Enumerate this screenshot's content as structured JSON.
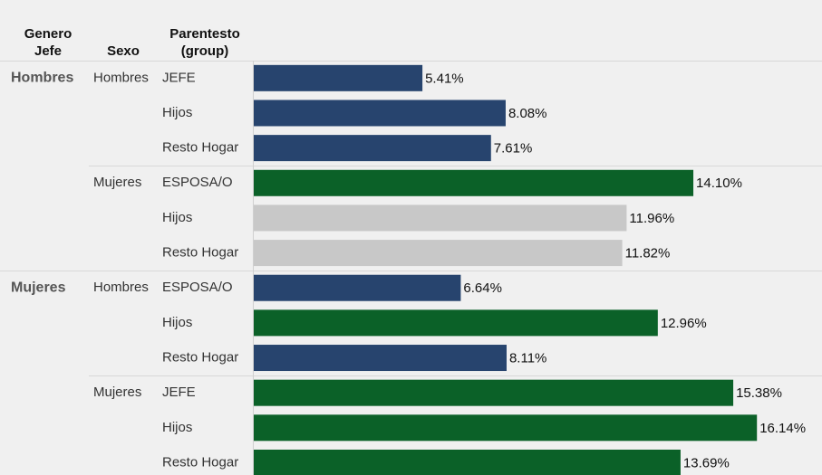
{
  "chart_data": {
    "type": "bar",
    "headers": [
      "Genero Jefe",
      "Sexo",
      "Parentesto (group)"
    ],
    "genero_jefe": [
      "Hombres",
      null,
      null,
      null,
      null,
      null,
      "Mujeres",
      null,
      null,
      null,
      null,
      null
    ],
    "sexo": [
      "Hombres",
      null,
      null,
      "Mujeres",
      null,
      null,
      "Hombres",
      null,
      null,
      "Mujeres",
      null,
      null
    ],
    "categories": [
      "JEFE",
      "Hijos",
      "Resto Hogar",
      "ESPOSA/O",
      "Hijos",
      "Resto Hogar",
      "ESPOSA/O",
      "Hijos",
      "Resto Hogar",
      "JEFE",
      "Hijos",
      "Resto Hogar"
    ],
    "values": [
      5.41,
      8.08,
      7.61,
      14.1,
      11.96,
      11.82,
      6.64,
      12.96,
      8.11,
      15.38,
      16.14,
      13.69
    ],
    "value_labels": [
      "5.41%",
      "8.08%",
      "7.61%",
      "14.10%",
      "11.96%",
      "11.82%",
      "6.64%",
      "12.96%",
      "8.11%",
      "15.38%",
      "16.14%",
      "13.69%"
    ],
    "colors": [
      "#27446e",
      "#27446e",
      "#27446e",
      "#0b6128",
      "#c8c8c8",
      "#c8c8c8",
      "#27446e",
      "#0b6128",
      "#27446e",
      "#0b6128",
      "#0b6128",
      "#0b6128"
    ]
  }
}
